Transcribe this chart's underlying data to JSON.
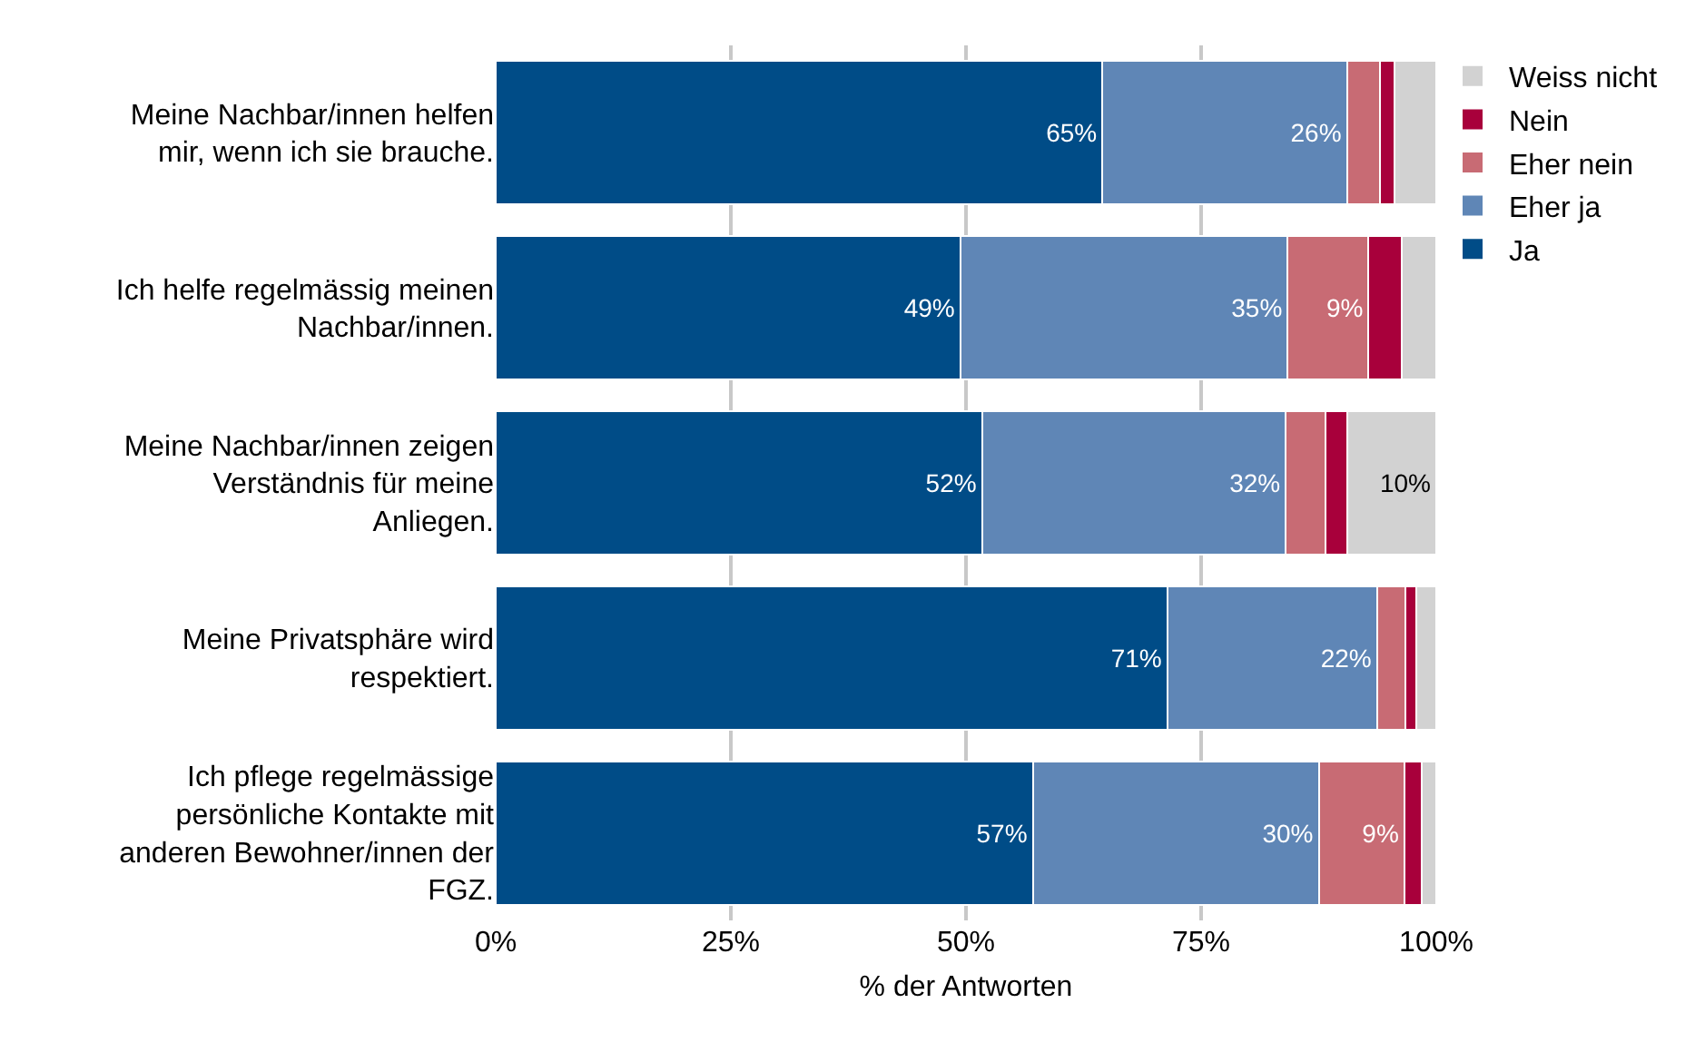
{
  "chart_data": {
    "type": "bar",
    "orientation": "horizontal",
    "stacked": true,
    "categories": [
      "Meine Nachbar/innen helfen mir, wenn ich sie brauche.",
      "Ich helfe regelmässig meinen Nachbar/innen.",
      "Meine Nachbar/innen zeigen Verständnis für meine Anliegen.",
      "Meine Privatsphäre wird respektiert.",
      "Ich pflege regelmässige persönliche Kontakte mit anderen Bewohner/innen der FGZ."
    ],
    "series": [
      {
        "name": "Ja",
        "color": "#004c87",
        "values": [
          64.5,
          49.4,
          51.7,
          71.4,
          57.1
        ],
        "value_labels": [
          "65%",
          "49%",
          "52%",
          "71%",
          "57%"
        ]
      },
      {
        "name": "Eher ja",
        "color": "#5f86b6",
        "values": [
          26.0,
          34.8,
          32.3,
          22.3,
          30.4
        ],
        "value_labels": [
          "26%",
          "35%",
          "32%",
          "22%",
          "30%"
        ]
      },
      {
        "name": "Eher nein",
        "color": "#c86b74",
        "values": [
          3.5,
          8.6,
          4.2,
          3.0,
          9.1
        ],
        "value_labels": [
          null,
          "9%",
          null,
          null,
          "9%"
        ]
      },
      {
        "name": "Nein",
        "color": "#a8003b",
        "values": [
          1.6,
          3.5,
          2.3,
          1.2,
          1.9
        ],
        "value_labels": [
          null,
          null,
          null,
          null,
          null
        ]
      },
      {
        "name": "Weiss nicht",
        "color": "#d2d2d2",
        "values": [
          4.4,
          3.7,
          9.5,
          2.1,
          1.5
        ],
        "value_labels": [
          null,
          null,
          "10%",
          null,
          null
        ]
      }
    ],
    "xlim": [
      0,
      100
    ],
    "xticks": [
      {
        "value": 0,
        "label": "0%"
      },
      {
        "value": 25,
        "label": "25%"
      },
      {
        "value": 50,
        "label": "50%"
      },
      {
        "value": 75,
        "label": "75%"
      },
      {
        "value": 100,
        "label": "100%"
      }
    ],
    "xlabel": "% der Antworten",
    "grid": "x",
    "legend": "top right"
  }
}
